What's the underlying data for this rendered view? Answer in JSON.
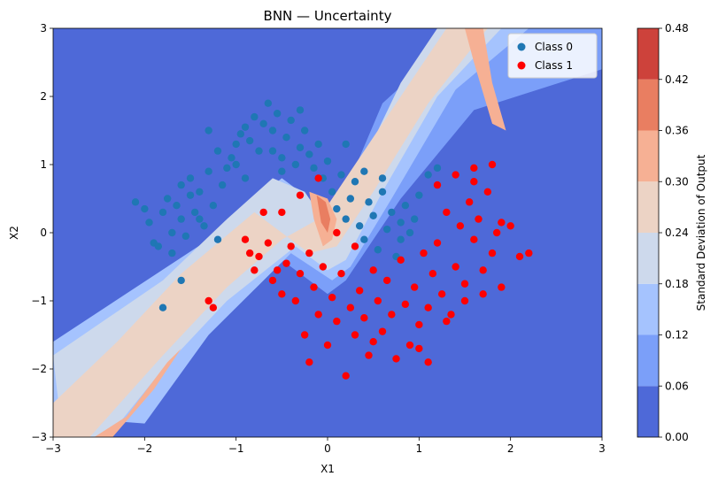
{
  "chart_data": {
    "type": "contour+scatter",
    "title": "BNN — Uncertainty",
    "xlabel": "X1",
    "ylabel": "X2",
    "xlim": [
      -3,
      3
    ],
    "ylim": [
      -3,
      3
    ],
    "xticks": [
      -3,
      -2,
      -1,
      0,
      1,
      2,
      3
    ],
    "yticks": [
      -3,
      -2,
      -1,
      0,
      1,
      2,
      3
    ],
    "xtick_labels": [
      "−3",
      "−2",
      "−1",
      "0",
      "1",
      "2",
      "3"
    ],
    "ytick_labels": [
      "−3",
      "−2",
      "−1",
      "0",
      "1",
      "2",
      "3"
    ],
    "legend_position": "top-right",
    "series": [
      {
        "name": "Class 0",
        "color": "#1f77b4",
        "points": [
          [
            -2.1,
            0.45
          ],
          [
            -2.0,
            0.35
          ],
          [
            -1.95,
            0.15
          ],
          [
            -1.9,
            -0.15
          ],
          [
            -1.85,
            -0.2
          ],
          [
            -1.8,
            0.3
          ],
          [
            -1.75,
            0.5
          ],
          [
            -1.7,
            0.0
          ],
          [
            -1.7,
            -0.3
          ],
          [
            -1.65,
            0.4
          ],
          [
            -1.6,
            0.7
          ],
          [
            -1.6,
            0.2
          ],
          [
            -1.55,
            -0.05
          ],
          [
            -1.5,
            0.55
          ],
          [
            -1.5,
            0.8
          ],
          [
            -1.45,
            0.3
          ],
          [
            -1.4,
            0.6
          ],
          [
            -1.35,
            0.1
          ],
          [
            -1.3,
            0.9
          ],
          [
            -1.25,
            0.4
          ],
          [
            -1.2,
            1.2
          ],
          [
            -1.15,
            0.7
          ],
          [
            -1.1,
            0.95
          ],
          [
            -1.05,
            1.1
          ],
          [
            -1.0,
            1.3
          ],
          [
            -0.95,
            1.45
          ],
          [
            -0.9,
            1.55
          ],
          [
            -0.85,
            1.35
          ],
          [
            -0.8,
            1.7
          ],
          [
            -0.75,
            1.2
          ],
          [
            -0.7,
            1.6
          ],
          [
            -0.65,
            1.9
          ],
          [
            -0.6,
            1.5
          ],
          [
            -0.55,
            1.75
          ],
          [
            -0.5,
            1.1
          ],
          [
            -0.45,
            1.4
          ],
          [
            -0.4,
            1.65
          ],
          [
            -0.35,
            1.0
          ],
          [
            -0.3,
            1.25
          ],
          [
            -0.25,
            1.5
          ],
          [
            -0.2,
            1.15
          ],
          [
            -0.15,
            0.95
          ],
          [
            -0.1,
            1.3
          ],
          [
            -0.05,
            0.8
          ],
          [
            0.0,
            1.05
          ],
          [
            0.05,
            0.6
          ],
          [
            0.1,
            0.35
          ],
          [
            0.15,
            0.85
          ],
          [
            0.2,
            0.2
          ],
          [
            0.25,
            0.5
          ],
          [
            0.3,
            0.75
          ],
          [
            0.35,
            0.1
          ],
          [
            0.4,
            -0.1
          ],
          [
            0.45,
            0.45
          ],
          [
            0.5,
            0.25
          ],
          [
            0.55,
            -0.25
          ],
          [
            0.6,
            0.6
          ],
          [
            0.65,
            0.05
          ],
          [
            0.7,
            0.3
          ],
          [
            0.75,
            -0.35
          ],
          [
            0.8,
            0.15
          ],
          [
            0.85,
            0.4
          ],
          [
            0.9,
            0.0
          ],
          [
            0.95,
            0.2
          ],
          [
            1.0,
            0.55
          ],
          [
            1.1,
            0.85
          ],
          [
            1.2,
            0.95
          ],
          [
            -1.8,
            -1.1
          ],
          [
            -1.6,
            -0.7
          ],
          [
            -1.3,
            1.5
          ],
          [
            -1.0,
            1.0
          ],
          [
            -0.6,
            1.2
          ],
          [
            -0.3,
            1.8
          ],
          [
            -1.4,
            0.2
          ],
          [
            -1.2,
            -0.1
          ],
          [
            -0.9,
            0.8
          ],
          [
            -0.5,
            0.9
          ],
          [
            0.2,
            1.3
          ],
          [
            0.4,
            0.9
          ],
          [
            0.6,
            0.8
          ],
          [
            0.8,
            -0.1
          ]
        ]
      },
      {
        "name": "Class 1",
        "color": "#ff0000",
        "points": [
          [
            -1.3,
            -1.0
          ],
          [
            -1.25,
            -1.1
          ],
          [
            -0.9,
            -0.1
          ],
          [
            -0.85,
            -0.3
          ],
          [
            -0.75,
            -0.35
          ],
          [
            -0.7,
            0.3
          ],
          [
            -0.65,
            -0.15
          ],
          [
            -0.6,
            -0.7
          ],
          [
            -0.55,
            -0.55
          ],
          [
            -0.5,
            -0.9
          ],
          [
            -0.45,
            -0.45
          ],
          [
            -0.4,
            -0.2
          ],
          [
            -0.35,
            -1.0
          ],
          [
            -0.3,
            -0.6
          ],
          [
            -0.25,
            -1.5
          ],
          [
            -0.2,
            -0.3
          ],
          [
            -0.15,
            -0.8
          ],
          [
            -0.1,
            -1.2
          ],
          [
            -0.05,
            -0.5
          ],
          [
            0.0,
            -1.65
          ],
          [
            0.05,
            -0.95
          ],
          [
            0.1,
            -1.3
          ],
          [
            0.15,
            -0.6
          ],
          [
            0.2,
            -2.1
          ],
          [
            0.25,
            -1.1
          ],
          [
            0.3,
            -1.5
          ],
          [
            0.35,
            -0.85
          ],
          [
            0.4,
            -1.25
          ],
          [
            0.45,
            -1.8
          ],
          [
            0.5,
            -0.55
          ],
          [
            0.55,
            -1.0
          ],
          [
            0.6,
            -1.45
          ],
          [
            0.65,
            -0.7
          ],
          [
            0.7,
            -1.2
          ],
          [
            0.75,
            -1.85
          ],
          [
            0.8,
            -0.4
          ],
          [
            0.85,
            -1.05
          ],
          [
            0.9,
            -1.65
          ],
          [
            0.95,
            -0.8
          ],
          [
            1.0,
            -1.35
          ],
          [
            1.05,
            -0.3
          ],
          [
            1.1,
            -1.1
          ],
          [
            1.15,
            -0.6
          ],
          [
            1.2,
            -0.15
          ],
          [
            1.25,
            -0.9
          ],
          [
            1.3,
            0.3
          ],
          [
            1.35,
            -1.2
          ],
          [
            1.4,
            -0.5
          ],
          [
            1.45,
            0.1
          ],
          [
            1.5,
            -0.75
          ],
          [
            1.55,
            0.45
          ],
          [
            1.6,
            -0.1
          ],
          [
            1.65,
            0.2
          ],
          [
            1.7,
            -0.55
          ],
          [
            1.75,
            0.6
          ],
          [
            1.8,
            -0.3
          ],
          [
            1.85,
            0.0
          ],
          [
            1.9,
            0.15
          ],
          [
            2.0,
            0.1
          ],
          [
            2.1,
            -0.35
          ],
          [
            2.2,
            -0.3
          ],
          [
            1.8,
            1.0
          ],
          [
            1.6,
            0.95
          ],
          [
            1.4,
            0.85
          ],
          [
            1.2,
            0.7
          ],
          [
            1.6,
            0.75
          ],
          [
            -0.5,
            0.3
          ],
          [
            -0.3,
            0.55
          ],
          [
            -0.1,
            0.8
          ],
          [
            0.1,
            0.0
          ],
          [
            0.3,
            -0.2
          ],
          [
            -0.8,
            -0.55
          ],
          [
            -0.2,
            -1.9
          ],
          [
            0.5,
            -1.6
          ],
          [
            1.0,
            -1.7
          ],
          [
            1.3,
            -1.3
          ],
          [
            1.5,
            -1.0
          ],
          [
            1.7,
            -0.9
          ],
          [
            1.9,
            -0.8
          ],
          [
            1.1,
            -1.9
          ]
        ]
      }
    ],
    "colorbar": {
      "label": "Standard Deviation of Output",
      "levels": [
        0.0,
        0.06,
        0.12,
        0.18,
        0.24,
        0.3,
        0.36,
        0.42,
        0.48
      ],
      "tick_labels": [
        "0.00",
        "0.06",
        "0.12",
        "0.18",
        "0.24",
        "0.30",
        "0.36",
        "0.42",
        "0.48"
      ],
      "colors": [
        "#4e69d8",
        "#7b9ff9",
        "#a5c3fe",
        "#cdd9ec",
        "#ecd3c5",
        "#f6b094",
        "#e97e61",
        "#cd423b"
      ]
    },
    "contour_regions": [
      {
        "level_index": 1,
        "points": [
          [
            -3,
            -2.0
          ],
          [
            -0.5,
            0.6
          ],
          [
            0.0,
            0.0
          ],
          [
            0.6,
            1.9
          ],
          [
            1.5,
            3
          ],
          [
            3,
            3
          ],
          [
            3,
            2.4
          ],
          [
            1.6,
            1.8
          ],
          [
            0.8,
            0.5
          ],
          [
            0.2,
            -0.7
          ],
          [
            0.0,
            -0.9
          ],
          [
            -0.6,
            -0.3
          ],
          [
            -3,
            -3
          ]
        ]
      },
      {
        "level_index": 2,
        "points": [
          [
            -3,
            -1.6
          ],
          [
            -1.3,
            -0.1
          ],
          [
            -0.5,
            0.8
          ],
          [
            -0.2,
            0.5
          ],
          [
            0.1,
            -0.1
          ],
          [
            0.4,
            0.8
          ],
          [
            0.9,
            2.2
          ],
          [
            1.3,
            3
          ],
          [
            2.2,
            3
          ],
          [
            1.4,
            2.1
          ],
          [
            0.7,
            0.5
          ],
          [
            0.25,
            -0.5
          ],
          [
            0.05,
            -0.7
          ],
          [
            -0.4,
            -0.3
          ],
          [
            -1.3,
            -1.5
          ],
          [
            -2.0,
            -2.8
          ],
          [
            -3,
            -2.7
          ]
        ]
      },
      {
        "level_index": 3,
        "points": [
          [
            -3,
            -1.8
          ],
          [
            -1.8,
            -0.7
          ],
          [
            -1.1,
            0.2
          ],
          [
            -0.6,
            0.8
          ],
          [
            -0.25,
            0.6
          ],
          [
            0.05,
            0.0
          ],
          [
            0.3,
            0.8
          ],
          [
            0.8,
            2.2
          ],
          [
            1.2,
            3
          ],
          [
            1.9,
            3
          ],
          [
            1.2,
            2.0
          ],
          [
            0.6,
            0.6
          ],
          [
            0.2,
            -0.4
          ],
          [
            0.0,
            -0.55
          ],
          [
            -0.35,
            -0.2
          ],
          [
            -1.1,
            -1.0
          ],
          [
            -1.8,
            -2.0
          ],
          [
            -2.4,
            -3
          ],
          [
            -2.9,
            -3
          ]
        ]
      },
      {
        "level_index": 4,
        "points": [
          [
            -2.6,
            -3
          ],
          [
            -1.8,
            -1.8
          ],
          [
            -1.1,
            -0.8
          ],
          [
            -0.5,
            -0.1
          ],
          [
            -0.1,
            0.2
          ],
          [
            0.1,
            0.6
          ],
          [
            0.6,
            1.6
          ],
          [
            1.1,
            2.6
          ],
          [
            1.3,
            3
          ],
          [
            1.75,
            3
          ],
          [
            1.1,
            1.9
          ],
          [
            0.5,
            0.6
          ],
          [
            0.1,
            -0.2
          ],
          [
            -0.2,
            -0.3
          ],
          [
            -0.8,
            0.3
          ],
          [
            -1.6,
            -0.6
          ],
          [
            -2.3,
            -1.6
          ],
          [
            -3,
            -2.5
          ],
          [
            -3,
            -3
          ]
        ]
      },
      {
        "level_index": 5,
        "points": [
          [
            -2.35,
            -3
          ],
          [
            -1.9,
            -2.3
          ],
          [
            -1.6,
            -1.7
          ],
          [
            -1.75,
            -1.9
          ],
          [
            -2.2,
            -2.7
          ],
          [
            -2.55,
            -3
          ]
        ]
      },
      {
        "level_index": 5,
        "points": [
          [
            1.5,
            3
          ],
          [
            1.6,
            2.5
          ],
          [
            1.8,
            1.6
          ],
          [
            1.95,
            1.5
          ],
          [
            1.8,
            2.2
          ],
          [
            1.7,
            3
          ]
        ]
      },
      {
        "level_index": 5,
        "points": [
          [
            -0.2,
            0.6
          ],
          [
            0.0,
            0.5
          ],
          [
            0.1,
            0.2
          ],
          [
            0.05,
            -0.1
          ],
          [
            -0.05,
            -0.2
          ],
          [
            -0.15,
            0.2
          ]
        ]
      },
      {
        "level_index": 6,
        "points": [
          [
            -0.12,
            0.55
          ],
          [
            -0.02,
            0.45
          ],
          [
            0.03,
            0.2
          ],
          [
            0.0,
            0.0
          ],
          [
            -0.07,
            0.15
          ]
        ]
      }
    ]
  }
}
